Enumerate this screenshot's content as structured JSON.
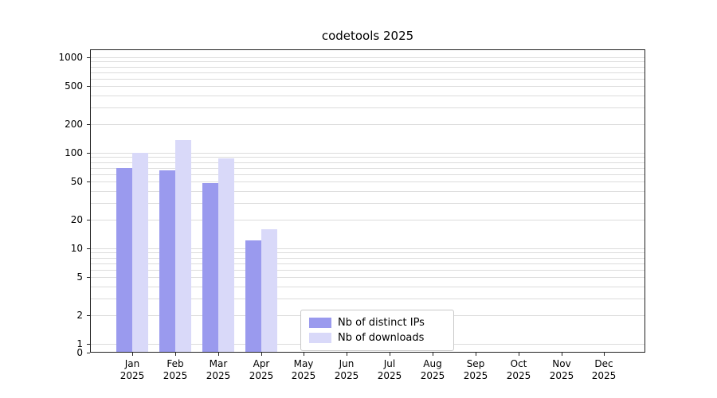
{
  "title": "codetools 2025",
  "chart_data": {
    "type": "bar",
    "title": "codetools 2025",
    "categories": [
      "Jan",
      "Feb",
      "Mar",
      "Apr",
      "May",
      "Jun",
      "Jul",
      "Aug",
      "Sep",
      "Oct",
      "Nov",
      "Dec"
    ],
    "year": "2025",
    "series": [
      {
        "name": "Nb of distinct IPs",
        "color": "#9a9aee",
        "values": [
          70,
          65,
          48,
          12,
          0,
          0,
          0,
          0,
          0,
          0,
          0,
          0
        ]
      },
      {
        "name": "Nb of downloads",
        "color": "#d9d9f9",
        "values": [
          100,
          135,
          88,
          16,
          0,
          0,
          0,
          0,
          0,
          0,
          0,
          0
        ]
      }
    ],
    "yscale": "symlog",
    "ytick_labels": [
      0,
      1,
      2,
      5,
      10,
      20,
      50,
      100,
      200,
      500,
      1000
    ],
    "ylim": [
      0,
      1200
    ],
    "grid": true,
    "legend_position": "inside-bottom-center"
  }
}
